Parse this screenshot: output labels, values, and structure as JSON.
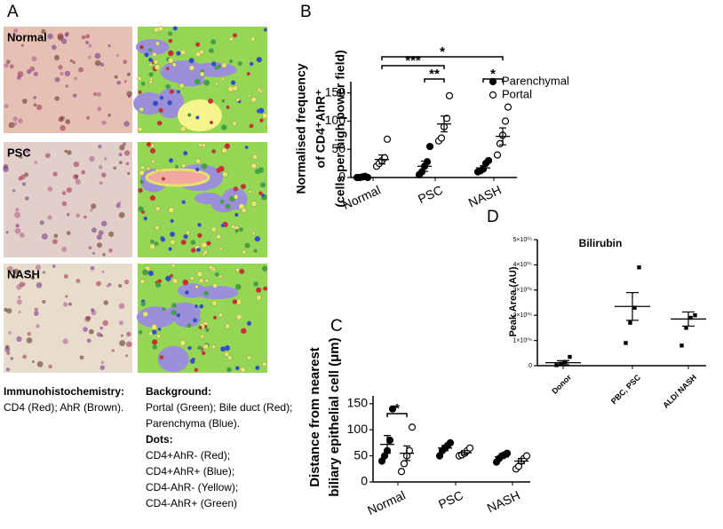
{
  "panel_a": {
    "label": "A",
    "rows": [
      "Normal",
      "PSC",
      "NASH"
    ],
    "caption_left": [
      "Immunohistochemistry:",
      "CD4 (Red); AhR (Brown)."
    ],
    "caption_right": [
      "Background:",
      "Portal (Green); Bile duct (Red);",
      "Parenchyma (Blue).",
      "Dots:",
      "CD4+AhR- (Red);",
      "CD4+AhR+ (Blue);",
      "CD4-AhR- (Yellow);",
      "CD4-AhR+ (Green)"
    ]
  },
  "chart_data": [
    {
      "type": "strip",
      "panel_label": "B",
      "y_label": [
        "Normalised frequency",
        "of CD4⁺AhR⁺",
        "(cells per high power field)"
      ],
      "categories": [
        "Normal",
        "PSC",
        "NASH"
      ],
      "ylim": [
        0,
        170
      ],
      "yticks": [
        0,
        50,
        100,
        150
      ],
      "series": [
        {
          "name": "Parenchymal",
          "marker": "filled",
          "values": [
            [
              0,
              0,
              1,
              2,
              0
            ],
            [
              5,
              10,
              20,
              28,
              55
            ],
            [
              10,
              12,
              15,
              25,
              30
            ]
          ],
          "mean": [
            1,
            20,
            17
          ],
          "sem": [
            0.5,
            9,
            4
          ]
        },
        {
          "name": "Portal",
          "marker": "open",
          "values": [
            [
              20,
              25,
              30,
              35,
              68
            ],
            [
              65,
              70,
              90,
              105,
              145
            ],
            [
              40,
              60,
              75,
              100,
              125
            ]
          ],
          "mean": [
            32,
            95,
            73
          ],
          "sem": [
            8,
            14,
            15
          ]
        }
      ],
      "brackets": [
        "*",
        "***",
        "**",
        "*"
      ],
      "legend": "top-right"
    },
    {
      "type": "strip",
      "panel_label": "C",
      "y_label": [
        "Distance from nearest",
        "biliary epithelial cell (μm)"
      ],
      "categories": [
        "Normal",
        "PSC",
        "NASH"
      ],
      "ylim": [
        0,
        165
      ],
      "yticks": [
        0,
        50,
        100,
        150
      ],
      "series": [
        {
          "marker": "filled",
          "values": [
            [
              40,
              50,
              60,
              80,
              140
            ],
            [
              50,
              60,
              65,
              70,
              75
            ],
            [
              38,
              45,
              50,
              52,
              55
            ]
          ],
          "mean": [
            72,
            65,
            48
          ],
          "sem": [
            17,
            5,
            3
          ]
        },
        {
          "marker": "open",
          "values": [
            [
              20,
              35,
              50,
              60,
              105
            ],
            [
              50,
              52,
              55,
              60,
              65
            ],
            [
              25,
              30,
              40,
              45,
              50
            ]
          ],
          "mean": [
            55,
            56,
            40
          ],
          "sem": [
            14,
            4,
            5
          ]
        }
      ],
      "brackets": [
        "*"
      ]
    },
    {
      "type": "strip",
      "panel_label": "D",
      "title": "Bilirubin",
      "y_label": [
        "Peak Area (AU)"
      ],
      "categories": [
        "Donor",
        "PBC, PSC",
        "ALD/ NASH"
      ],
      "ylim": [
        0,
        5000000
      ],
      "yticks": [
        0,
        {
          "value": 1000000,
          "label": "1×10⁰⁶"
        },
        {
          "value": 2000000,
          "label": "2×10⁰⁶"
        },
        {
          "value": 3000000,
          "label": "3×10⁰⁶"
        },
        {
          "value": 4000000,
          "label": "4×10⁰⁶"
        },
        {
          "value": 5000000,
          "label": "5×10⁰⁶"
        }
      ],
      "series": [
        {
          "marker": "square",
          "values": [
            [
              20000,
              80000,
              150000,
              350000
            ],
            [
              900000,
              1700000,
              2300000,
              3900000
            ],
            [
              800000,
              1500000,
              1900000,
              2000000
            ]
          ],
          "mean": [
            120000,
            2350000,
            1850000
          ],
          "sem": [
            80000,
            550000,
            280000
          ]
        }
      ]
    }
  ]
}
